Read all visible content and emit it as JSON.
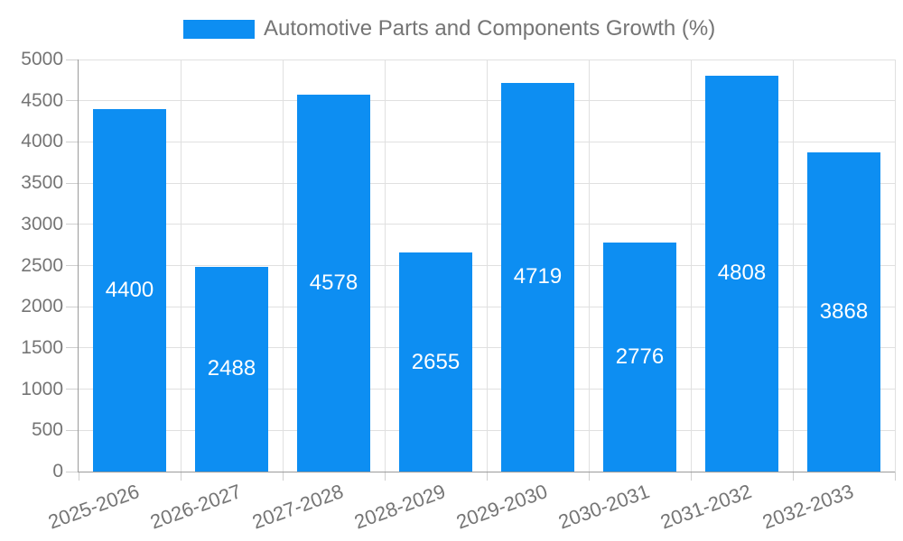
{
  "chart_data": {
    "type": "bar",
    "title": "Automotive Parts and Components Growth (%)",
    "legend": {
      "position": "top",
      "entries": [
        "Automotive Parts and Components Growth (%)"
      ]
    },
    "categories": [
      "2025-2026",
      "2026-2027",
      "2027-2028",
      "2028-2029",
      "2029-2030",
      "2030-2031",
      "2031-2032",
      "2032-2033"
    ],
    "series": [
      {
        "name": "Automotive Parts and Components Growth (%)",
        "values": [
          4400,
          2488,
          4578,
          2655,
          4719,
          2776,
          4808,
          3868
        ]
      }
    ],
    "data_labels": [
      "4400",
      "2488",
      "4578",
      "2655",
      "4719",
      "2776",
      "4808",
      "3868"
    ],
    "xlabel": "",
    "ylabel": "",
    "ylim": [
      0,
      5000
    ],
    "yticks": [
      0,
      500,
      1000,
      1500,
      2000,
      2500,
      3000,
      3500,
      4000,
      4500,
      5000
    ],
    "grid": true,
    "colors": {
      "bar": "#0d8ef2",
      "bar_label": "#ffffff",
      "axis_line": "#9a9a9a",
      "gridline": "#e0e0e0",
      "tick": "#cfcfcf",
      "text": "#757575"
    }
  }
}
